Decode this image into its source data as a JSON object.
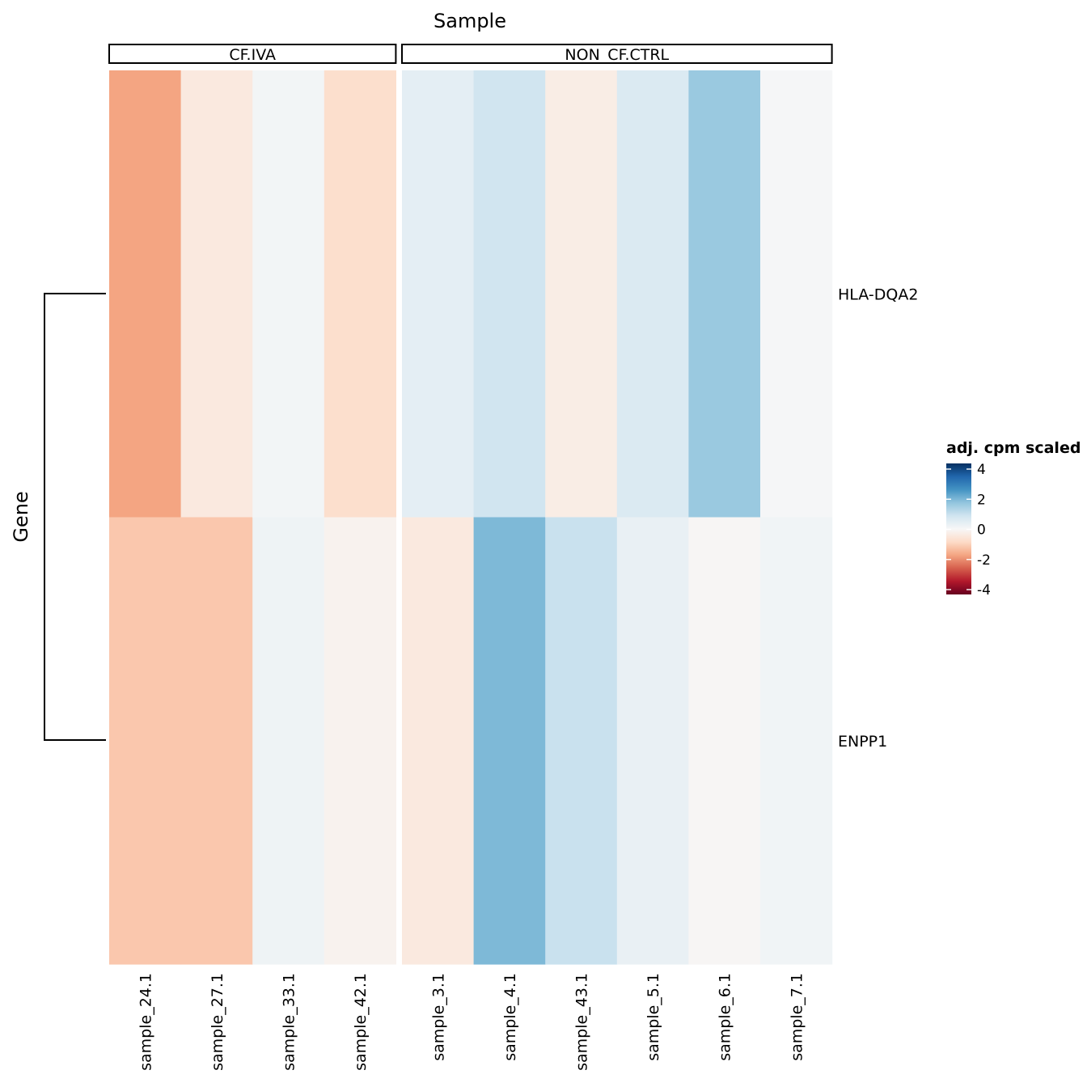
{
  "chart_data": {
    "type": "heatmap",
    "title": "Sample",
    "xlabel": "Sample",
    "ylabel": "Gene",
    "facets": [
      {
        "label": "CF.IVA",
        "samples": [
          "sample_24.1",
          "sample_27.1",
          "sample_33.1",
          "sample_42.1"
        ]
      },
      {
        "label": "NON_CF.CTRL",
        "samples": [
          "sample_3.1",
          "sample_4.1",
          "sample_43.1",
          "sample_5.1",
          "sample_6.1",
          "sample_7.1"
        ]
      }
    ],
    "genes": [
      "HLA-DQA2",
      "ENPP1"
    ],
    "values": {
      "HLA-DQA2": [
        -1.6,
        -0.4,
        0.1,
        -0.7,
        0.4,
        0.8,
        -0.3,
        0.6,
        1.5,
        0.05
      ],
      "ENPP1": [
        -1.1,
        -1.1,
        0.2,
        -0.15,
        -0.4,
        1.8,
        0.9,
        0.3,
        -0.05,
        0.15
      ]
    },
    "dendrogram": {
      "merges": [
        [
          "HLA-DQA2",
          "ENPP1"
        ]
      ]
    },
    "legend": {
      "title": "adj. cpm scaled",
      "range": [
        -4,
        4
      ],
      "ticks": [
        4,
        2,
        0,
        -2,
        -4
      ],
      "tick_labels": [
        "4",
        "2",
        "0",
        "-2",
        "-4"
      ],
      "placement": "right",
      "palette": [
        "#67001f",
        "#b2182b",
        "#d6604d",
        "#f4a582",
        "#fddbc7",
        "#f7f7f7",
        "#d1e5f0",
        "#92c5de",
        "#4393c3",
        "#2166ac",
        "#053061"
      ]
    }
  }
}
